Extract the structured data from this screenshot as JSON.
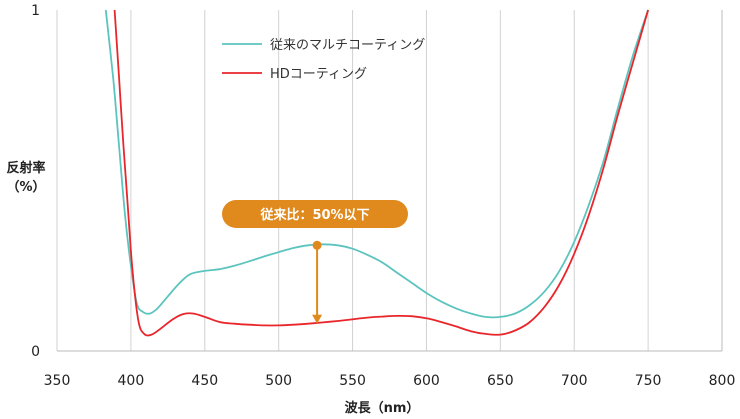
{
  "chart_data": {
    "type": "line",
    "xlabel": "波長（nm）",
    "ylabel": "反射率",
    "ylabel_unit": "（%）",
    "xlim": [
      350,
      800
    ],
    "ylim": [
      0,
      1
    ],
    "x_ticks": [
      "350",
      "400",
      "450",
      "500",
      "550",
      "600",
      "650",
      "700",
      "750",
      "800"
    ],
    "y_ticks": [
      "0",
      "1"
    ],
    "grid": "vertical",
    "legend_position": "top-center",
    "series": [
      {
        "name": "従来のマルチコーティング",
        "color": "#5cc4be",
        "x": [
          383,
          388,
          392,
          396,
          400,
          404,
          408,
          413,
          418,
          425,
          432,
          440,
          450,
          460,
          470,
          480,
          490,
          500,
          510,
          520,
          530,
          540,
          550,
          560,
          570,
          580,
          590,
          600,
          610,
          620,
          630,
          640,
          650,
          660,
          670,
          680,
          690,
          700,
          710,
          720,
          730,
          740,
          750
        ],
        "y": [
          1.0,
          0.8,
          0.6,
          0.4,
          0.25,
          0.14,
          0.115,
          0.11,
          0.125,
          0.16,
          0.195,
          0.225,
          0.235,
          0.24,
          0.25,
          0.263,
          0.277,
          0.29,
          0.302,
          0.31,
          0.313,
          0.31,
          0.3,
          0.282,
          0.26,
          0.23,
          0.2,
          0.17,
          0.145,
          0.125,
          0.11,
          0.1,
          0.1,
          0.11,
          0.135,
          0.175,
          0.235,
          0.32,
          0.43,
          0.56,
          0.72,
          0.87,
          1.0
        ]
      },
      {
        "name": "HDコーティング",
        "color": "#e8262b",
        "x": [
          389,
          392,
          395,
          398,
          401,
          405,
          409,
          414,
          420,
          428,
          435,
          442,
          450,
          460,
          470,
          480,
          490,
          500,
          510,
          520,
          530,
          540,
          550,
          560,
          570,
          580,
          590,
          600,
          610,
          620,
          630,
          640,
          650,
          660,
          670,
          680,
          690,
          700,
          710,
          720,
          730,
          740,
          750
        ],
        "y": [
          1.0,
          0.8,
          0.6,
          0.42,
          0.24,
          0.09,
          0.05,
          0.048,
          0.065,
          0.092,
          0.108,
          0.11,
          0.1,
          0.085,
          0.08,
          0.077,
          0.075,
          0.075,
          0.077,
          0.08,
          0.084,
          0.088,
          0.093,
          0.098,
          0.101,
          0.103,
          0.102,
          0.096,
          0.085,
          0.072,
          0.058,
          0.05,
          0.048,
          0.06,
          0.085,
          0.13,
          0.195,
          0.285,
          0.4,
          0.54,
          0.7,
          0.85,
          1.0
        ]
      }
    ],
    "annotation": {
      "text": "従来比：50%以下",
      "x": 526,
      "y_top": 0.31,
      "y_bottom": 0.08,
      "color": "#e08a1e"
    }
  }
}
